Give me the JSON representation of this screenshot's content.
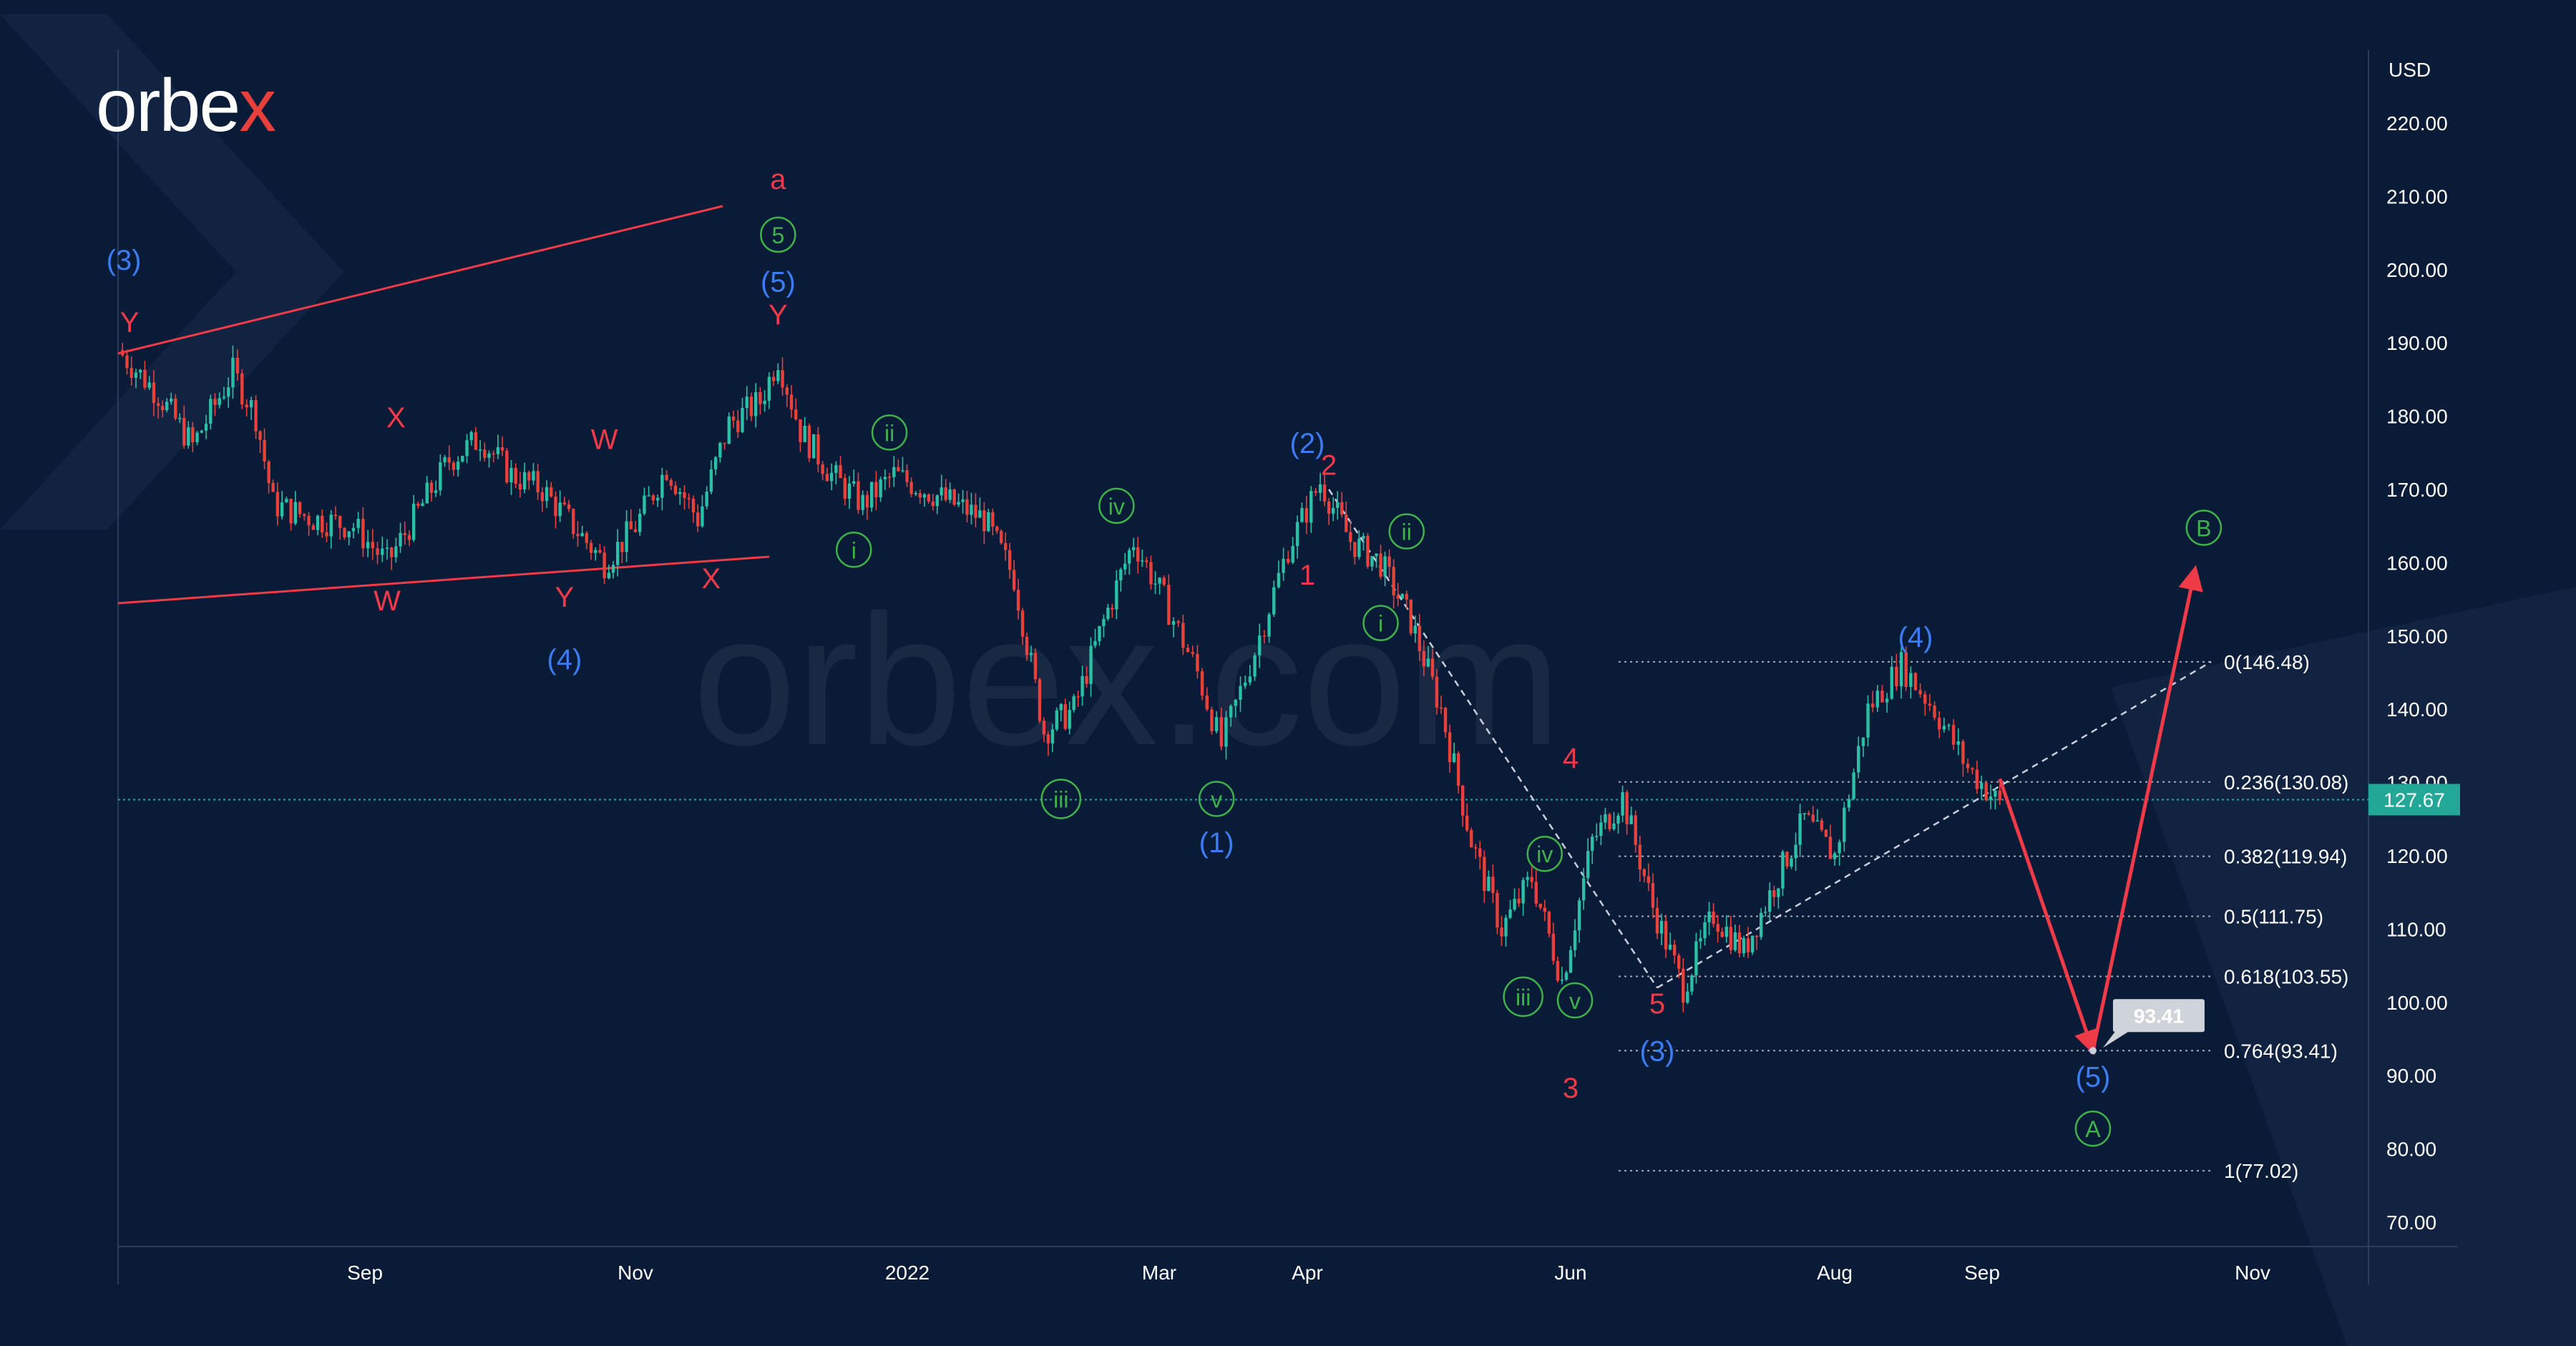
{
  "brand": {
    "logo_main": "orbe",
    "logo_x": "x",
    "watermark": "orbex.com"
  },
  "colors": {
    "background": "#0a1b38",
    "up_candle": "#2bbfa5",
    "down_candle": "#e8403a",
    "red": "#ef3b48",
    "blue": "#3b7cf2",
    "green": "#3fb24a",
    "price_tag": "#23a897",
    "grid_text": "#ffffff"
  },
  "chart_data": {
    "type": "candlestick",
    "currency": "USD",
    "y_ticks": [
      "220.00",
      "210.00",
      "200.00",
      "190.00",
      "180.00",
      "170.00",
      "160.00",
      "150.00",
      "140.00",
      "130.00",
      "120.00",
      "110.00",
      "100.00",
      "90.00",
      "80.00",
      "70.00"
    ],
    "x_ticks": [
      "Sep",
      "Nov",
      "2022",
      "Mar",
      "Apr",
      "Jun",
      "Aug",
      "Sep",
      "Nov"
    ],
    "ylim": [
      65,
      225
    ],
    "current_price": "127.67",
    "target_price": "93.41",
    "fibonacci_levels": [
      {
        "label": "0(146.48)",
        "value": 146.48
      },
      {
        "label": "0.236(130.08)",
        "value": 130.08
      },
      {
        "label": "0.382(119.94)",
        "value": 119.94
      },
      {
        "label": "0.5(111.75)",
        "value": 111.75
      },
      {
        "label": "0.618(103.55)",
        "value": 103.55
      },
      {
        "label": "0.764(93.41)",
        "value": 93.41
      },
      {
        "label": "1(77.02)",
        "value": 77.02
      }
    ],
    "price_path": [
      [
        "2021-07-20",
        189
      ],
      [
        "2021-07-27",
        183
      ],
      [
        "2021-08-02",
        176
      ],
      [
        "2021-08-09",
        186
      ],
      [
        "2021-08-13",
        180
      ],
      [
        "2021-08-16",
        168
      ],
      [
        "2021-08-23",
        166
      ],
      [
        "2021-08-30",
        165
      ],
      [
        "2021-09-06",
        160
      ],
      [
        "2021-09-13",
        167
      ],
      [
        "2021-09-20",
        174
      ],
      [
        "2021-09-27",
        177
      ],
      [
        "2021-10-04",
        172
      ],
      [
        "2021-10-11",
        170
      ],
      [
        "2021-10-18",
        165
      ],
      [
        "2021-10-25",
        160
      ],
      [
        "2021-11-01",
        165
      ],
      [
        "2021-11-08",
        173
      ],
      [
        "2021-11-15",
        166
      ],
      [
        "2021-11-22",
        179
      ],
      [
        "2021-11-29",
        182
      ],
      [
        "2021-12-03",
        188
      ],
      [
        "2021-12-08",
        178
      ],
      [
        "2021-12-15",
        172
      ],
      [
        "2021-12-22",
        168
      ],
      [
        "2021-12-29",
        172
      ],
      [
        "2022-01-05",
        170
      ],
      [
        "2022-01-12",
        168
      ],
      [
        "2022-01-19",
        166
      ],
      [
        "2022-01-26",
        158
      ],
      [
        "2022-02-02",
        137
      ],
      [
        "2022-02-09",
        140
      ],
      [
        "2022-02-16",
        152
      ],
      [
        "2022-02-23",
        163
      ],
      [
        "2022-03-02",
        155
      ],
      [
        "2022-03-09",
        145
      ],
      [
        "2022-03-14",
        135
      ],
      [
        "2022-03-21",
        148
      ],
      [
        "2022-03-28",
        162
      ],
      [
        "2022-04-04",
        171
      ],
      [
        "2022-04-11",
        163
      ],
      [
        "2022-04-18",
        160
      ],
      [
        "2022-04-25",
        152
      ],
      [
        "2022-05-02",
        140
      ],
      [
        "2022-05-09",
        122
      ],
      [
        "2022-05-16",
        110
      ],
      [
        "2022-05-23",
        117
      ],
      [
        "2022-05-30",
        103
      ],
      [
        "2022-06-06",
        122
      ],
      [
        "2022-06-13",
        128
      ],
      [
        "2022-06-20",
        113
      ],
      [
        "2022-06-27",
        102
      ],
      [
        "2022-07-04",
        112
      ],
      [
        "2022-07-11",
        107
      ],
      [
        "2022-07-18",
        116
      ],
      [
        "2022-07-25",
        125
      ],
      [
        "2022-08-01",
        120
      ],
      [
        "2022-08-08",
        140
      ],
      [
        "2022-08-15",
        146
      ],
      [
        "2022-08-22",
        140
      ],
      [
        "2022-08-29",
        132
      ],
      [
        "2022-09-05",
        127
      ]
    ],
    "projection": [
      [
        "2022-09-05",
        130.5
      ],
      [
        "2022-09-26",
        93.41
      ],
      [
        "2022-10-19",
        159
      ]
    ],
    "wave_labels": [
      {
        "text": "(3)",
        "color": "blue",
        "date": "2021-07-21",
        "price": 200
      },
      {
        "text": "Y",
        "color": "red",
        "date": "2021-07-22",
        "price": 191.5
      },
      {
        "text": "X",
        "color": "red",
        "date": "2021-09-08",
        "price": 178.5
      },
      {
        "text": "W",
        "color": "red",
        "date": "2021-10-25",
        "price": 175.5
      },
      {
        "text": "W",
        "color": "red",
        "date": "2021-09-06",
        "price": 153.5
      },
      {
        "text": "Y",
        "color": "red",
        "date": "2021-10-16",
        "price": 154
      },
      {
        "text": "(4)",
        "color": "blue",
        "date": "2021-10-16",
        "price": 145.5
      },
      {
        "text": "X",
        "color": "red",
        "date": "2021-11-18",
        "price": 156.5
      },
      {
        "text": "a",
        "color": "red",
        "date": "2021-12-03",
        "price": 211
      },
      {
        "text": "5",
        "color": "green",
        "circle": true,
        "date": "2021-12-03",
        "price": 203.5
      },
      {
        "text": "(5)",
        "color": "blue",
        "date": "2021-12-03",
        "price": 197
      },
      {
        "text": "Y",
        "color": "red",
        "date": "2021-12-03",
        "price": 192.5
      },
      {
        "text": "ii",
        "color": "green",
        "circle": true,
        "date": "2021-12-28",
        "price": 176.5
      },
      {
        "text": "i",
        "color": "green",
        "circle": true,
        "date": "2021-12-20",
        "price": 160.5
      },
      {
        "text": "iv",
        "color": "green",
        "circle": true,
        "date": "2022-02-19",
        "price": 166.5
      },
      {
        "text": "iii",
        "color": "green",
        "circle": true,
        "date": "2022-02-06",
        "price": 126.5
      },
      {
        "text": "v",
        "color": "green",
        "circle": true,
        "date": "2022-03-13",
        "price": 126.5
      },
      {
        "text": "(1)",
        "color": "blue",
        "date": "2022-03-13",
        "price": 120.5
      },
      {
        "text": "(2)",
        "color": "blue",
        "date": "2022-04-01",
        "price": 175
      },
      {
        "text": "2",
        "color": "red",
        "date": "2022-04-06",
        "price": 172
      },
      {
        "text": "ii",
        "color": "green",
        "circle": true,
        "date": "2022-04-24",
        "price": 163
      },
      {
        "text": "1",
        "color": "red",
        "date": "2022-04-01",
        "price": 157
      },
      {
        "text": "i",
        "color": "green",
        "circle": true,
        "date": "2022-04-18",
        "price": 150.5
      },
      {
        "text": "4",
        "color": "red",
        "date": "2022-06-01",
        "price": 132
      },
      {
        "text": "iv",
        "color": "green",
        "circle": true,
        "date": "2022-05-26",
        "price": 119
      },
      {
        "text": "iii",
        "color": "green",
        "circle": true,
        "date": "2022-05-21",
        "price": 99.5
      },
      {
        "text": "v",
        "color": "green",
        "circle": true,
        "date": "2022-06-02",
        "price": 99
      },
      {
        "text": "3",
        "color": "red",
        "date": "2022-06-01",
        "price": 87
      },
      {
        "text": "5",
        "color": "red",
        "date": "2022-06-21",
        "price": 98.5
      },
      {
        "text": "(3)",
        "color": "blue",
        "date": "2022-06-21",
        "price": 92
      },
      {
        "text": "(4)",
        "color": "blue",
        "date": "2022-08-18",
        "price": 148.5
      },
      {
        "text": "(5)",
        "color": "blue",
        "date": "2022-09-26",
        "price": 88.5
      },
      {
        "text": "A",
        "color": "green",
        "circle": true,
        "date": "2022-09-26",
        "price": 81.5
      },
      {
        "text": "B",
        "color": "green",
        "circle": true,
        "date": "2022-10-21",
        "price": 163.5
      }
    ]
  }
}
